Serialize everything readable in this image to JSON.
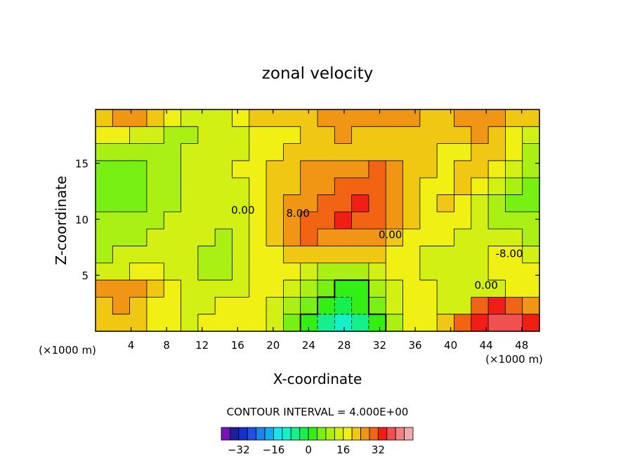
{
  "chart_data": {
    "type": "heatmap",
    "title": "zonal velocity",
    "xlabel": "X-coordinate",
    "ylabel": "Z-coordinate",
    "x_unit": "(×1000 m)",
    "x_range": [
      0,
      50
    ],
    "y_range": [
      0,
      19.8
    ],
    "x_ticks": [
      "4",
      "8",
      "12",
      "16",
      "20",
      "24",
      "28",
      "32",
      "36",
      "40",
      "44",
      "48"
    ],
    "y_ticks": [
      "5",
      "10",
      "15"
    ],
    "contour_interval_label": "CONTOUR INTERVAL = 4.000E+00",
    "contour_labels": [
      {
        "text": "0.00",
        "x": 16.6,
        "y": 10.5
      },
      {
        "text": "8.00",
        "x": 22.8,
        "y": 10.2
      },
      {
        "text": "0.00",
        "x": 33.2,
        "y": 8.3
      },
      {
        "text": "-8.00",
        "x": 46.6,
        "y": 6.6
      },
      {
        "text": "0.00",
        "x": 44.0,
        "y": 3.8
      }
    ],
    "colorbar": {
      "tick_labels": [
        "−32",
        "−16",
        "0",
        "16",
        "32"
      ],
      "tick_values": [
        -32,
        -16,
        0,
        16,
        32
      ],
      "colors": [
        "#7b14b4",
        "#1e1ea0",
        "#1432c8",
        "#1e50e6",
        "#1e82f0",
        "#14aaf0",
        "#14e6f0",
        "#14f0c8",
        "#14f08c",
        "#14f050",
        "#32f014",
        "#78f014",
        "#aaf014",
        "#d2f014",
        "#f0f014",
        "#f0c814",
        "#f09614",
        "#f06414",
        "#f01e14",
        "#f05050",
        "#f08282",
        "#f0aaaa"
      ]
    },
    "field_levels": [
      [
        5,
        6,
        6,
        5,
        4,
        3,
        3,
        3,
        4,
        5,
        5,
        5,
        5,
        6,
        6,
        6,
        6,
        6,
        6,
        5,
        5,
        6,
        6,
        6,
        5,
        5
      ],
      [
        4,
        4,
        3,
        3,
        2,
        2,
        3,
        3,
        3,
        4,
        4,
        4,
        5,
        5,
        6,
        5,
        5,
        5,
        5,
        5,
        5,
        5,
        6,
        5,
        4,
        3
      ],
      [
        2,
        2,
        2,
        2,
        2,
        3,
        3,
        3,
        3,
        4,
        4,
        5,
        5,
        5,
        5,
        5,
        5,
        5,
        5,
        5,
        4,
        4,
        5,
        5,
        4,
        2
      ],
      [
        1,
        1,
        1,
        2,
        2,
        3,
        3,
        3,
        4,
        4,
        5,
        5,
        6,
        6,
        6,
        6,
        7,
        6,
        5,
        5,
        4,
        5,
        5,
        4,
        3,
        2
      ],
      [
        1,
        1,
        1,
        2,
        2,
        3,
        3,
        3,
        3,
        4,
        5,
        5,
        6,
        6,
        7,
        7,
        7,
        6,
        5,
        4,
        4,
        5,
        4,
        3,
        2,
        1
      ],
      [
        1,
        1,
        1,
        2,
        2,
        3,
        3,
        3,
        3,
        4,
        5,
        6,
        6,
        7,
        7,
        8,
        7,
        6,
        5,
        4,
        5,
        4,
        3,
        2,
        1,
        1
      ],
      [
        2,
        2,
        2,
        2,
        3,
        3,
        3,
        3,
        3,
        4,
        5,
        6,
        7,
        7,
        8,
        7,
        7,
        6,
        5,
        4,
        4,
        4,
        3,
        2,
        2,
        2
      ],
      [
        2,
        2,
        2,
        3,
        3,
        3,
        3,
        2,
        3,
        4,
        5,
        6,
        7,
        6,
        6,
        6,
        6,
        5,
        4,
        4,
        4,
        3,
        3,
        3,
        3,
        2
      ],
      [
        2,
        3,
        3,
        3,
        3,
        3,
        2,
        2,
        3,
        4,
        4,
        5,
        5,
        5,
        5,
        5,
        5,
        4,
        4,
        3,
        3,
        3,
        3,
        4,
        4,
        3
      ],
      [
        3,
        3,
        4,
        4,
        3,
        3,
        2,
        2,
        3,
        4,
        4,
        4,
        3,
        2,
        2,
        2,
        3,
        4,
        4,
        3,
        3,
        3,
        3,
        4,
        4,
        4
      ],
      [
        6,
        6,
        6,
        5,
        4,
        3,
        3,
        3,
        3,
        4,
        4,
        3,
        2,
        1,
        0,
        0,
        2,
        3,
        4,
        4,
        3,
        3,
        3,
        3,
        4,
        4
      ],
      [
        5,
        6,
        5,
        4,
        4,
        3,
        3,
        4,
        4,
        4,
        3,
        2,
        1,
        0,
        -1,
        0,
        1,
        3,
        4,
        4,
        3,
        3,
        7,
        8,
        7,
        6
      ],
      [
        5,
        5,
        5,
        4,
        4,
        3,
        4,
        4,
        4,
        4,
        3,
        1,
        0,
        -2,
        -3,
        -2,
        0,
        2,
        4,
        4,
        5,
        7,
        8,
        9,
        9,
        8
      ]
    ]
  }
}
